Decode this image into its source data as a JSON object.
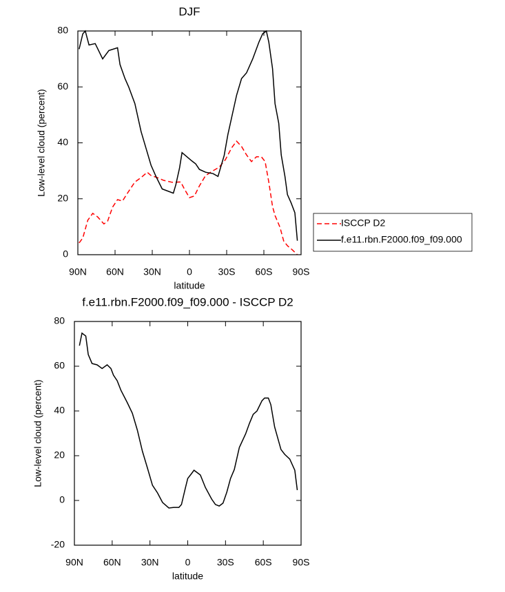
{
  "chart_data": [
    {
      "type": "line",
      "title": "DJF",
      "xlabel": "latitude",
      "ylabel": "Low-level cloud (percent)",
      "xlim": [
        90,
        -90
      ],
      "ylim": [
        0,
        80
      ],
      "xticks": [
        {
          "value": 90,
          "label": "90N"
        },
        {
          "value": 60,
          "label": "60N"
        },
        {
          "value": 30,
          "label": "30N"
        },
        0,
        {
          "value": -30,
          "label": "30S"
        },
        {
          "value": -60,
          "label": "60S"
        },
        {
          "value": -90,
          "label": "90S"
        }
      ],
      "yticks": [
        0,
        20,
        40,
        60,
        80
      ],
      "legend": "outside-right",
      "series": [
        {
          "name": "ISCCP D2",
          "color": "#ff0000",
          "linestyle": "dashed",
          "x": [
            89,
            86,
            82,
            78,
            74,
            69,
            66,
            62,
            58,
            54,
            50,
            44,
            39,
            34,
            31,
            26,
            21,
            14,
            7,
            4,
            0,
            -4,
            -8,
            -13,
            -19,
            -24,
            -29,
            -34,
            -38,
            -42,
            -46,
            -50,
            -54,
            -58,
            -61,
            -64,
            -67,
            -69,
            -73,
            -76,
            -79,
            -83,
            -87
          ],
          "values": [
            4.2,
            6,
            12.3,
            14.8,
            13.5,
            11,
            12,
            17,
            19.7,
            19.2,
            22,
            26,
            27.6,
            29.5,
            28.3,
            27.6,
            26.6,
            25.9,
            26,
            23.4,
            20.4,
            21,
            24.6,
            28.3,
            30,
            31.3,
            34,
            38.2,
            40.6,
            38.7,
            35.7,
            33.3,
            35,
            35,
            33.3,
            25.9,
            17.2,
            14,
            9.8,
            4.9,
            3.2,
            1.7,
            0
          ]
        },
        {
          "name": "f.e11.rbn.F2000.f09_f09.000",
          "color": "#000000",
          "linestyle": "solid",
          "x": [
            89,
            86,
            84,
            81,
            76,
            70,
            65,
            58,
            56,
            52,
            49,
            44,
            39,
            35,
            31,
            27,
            22,
            13,
            11,
            8,
            6,
            2,
            -2,
            -5,
            -8,
            -13,
            -19,
            -23,
            -25,
            -28,
            -31,
            -34,
            -38,
            -42,
            -46,
            -51,
            -56,
            -59,
            -62,
            -64,
            -67,
            -69,
            -72,
            -74,
            -77,
            -79,
            -82,
            -85,
            -87
          ],
          "values": [
            73.5,
            79,
            80,
            75,
            75.5,
            70,
            73,
            74,
            68,
            63,
            60,
            54,
            44,
            38,
            32,
            28,
            23.5,
            22,
            25,
            31,
            36.5,
            35,
            33.5,
            32.5,
            30.5,
            29.5,
            29,
            28,
            31,
            35.5,
            43,
            49,
            57,
            63,
            65,
            70,
            76,
            79,
            80,
            76,
            66.5,
            54,
            47,
            35.7,
            28,
            21.5,
            18.5,
            15,
            5
          ]
        }
      ]
    },
    {
      "type": "line",
      "title": "f.e11.rbn.F2000.f09_f09.000 - ISCCP D2",
      "xlabel": "latitude",
      "ylabel": "Low-level cloud (percent)",
      "xlim": [
        90,
        -90
      ],
      "ylim": [
        -20,
        80
      ],
      "xticks": [
        {
          "value": 90,
          "label": "90N"
        },
        {
          "value": 60,
          "label": "60N"
        },
        {
          "value": 30,
          "label": "30N"
        },
        0,
        {
          "value": -30,
          "label": "30S"
        },
        {
          "value": -60,
          "label": "60S"
        },
        {
          "value": -90,
          "label": "90S"
        }
      ],
      "yticks": [
        -20,
        0,
        20,
        40,
        60,
        80
      ],
      "series": [
        {
          "color": "#000000",
          "linestyle": "solid",
          "x": [
            86,
            84,
            81,
            79,
            76,
            72,
            68,
            64,
            61,
            59,
            56,
            53,
            48,
            44,
            40,
            36,
            32,
            28,
            24,
            20,
            15,
            11,
            7,
            5,
            2,
            0,
            -3,
            -5,
            -10,
            -14,
            -19,
            -22,
            -25,
            -28,
            -31,
            -34,
            -37,
            -41,
            -46,
            -49,
            -52,
            -55,
            -59,
            -61,
            -64,
            -66,
            -69,
            -74,
            -77,
            -81,
            -85,
            -87
          ],
          "values": [
            69.2,
            74.8,
            73.5,
            65.2,
            61.2,
            60.6,
            59,
            60.6,
            59,
            56,
            53.5,
            49.2,
            43.7,
            39,
            31.4,
            22,
            14.5,
            6.8,
            3.4,
            -0.9,
            -3.4,
            -3.1,
            -3.1,
            -1.8,
            5.2,
            9.8,
            12,
            13.5,
            11.4,
            5.8,
            0.6,
            -1.8,
            -2.5,
            -1.2,
            3.7,
            9.8,
            13.8,
            23.7,
            29.8,
            34.5,
            38.5,
            40,
            44.6,
            45.8,
            45.8,
            42.8,
            32.9,
            22.8,
            20.6,
            18.5,
            13.5,
            4.6
          ]
        }
      ]
    }
  ]
}
